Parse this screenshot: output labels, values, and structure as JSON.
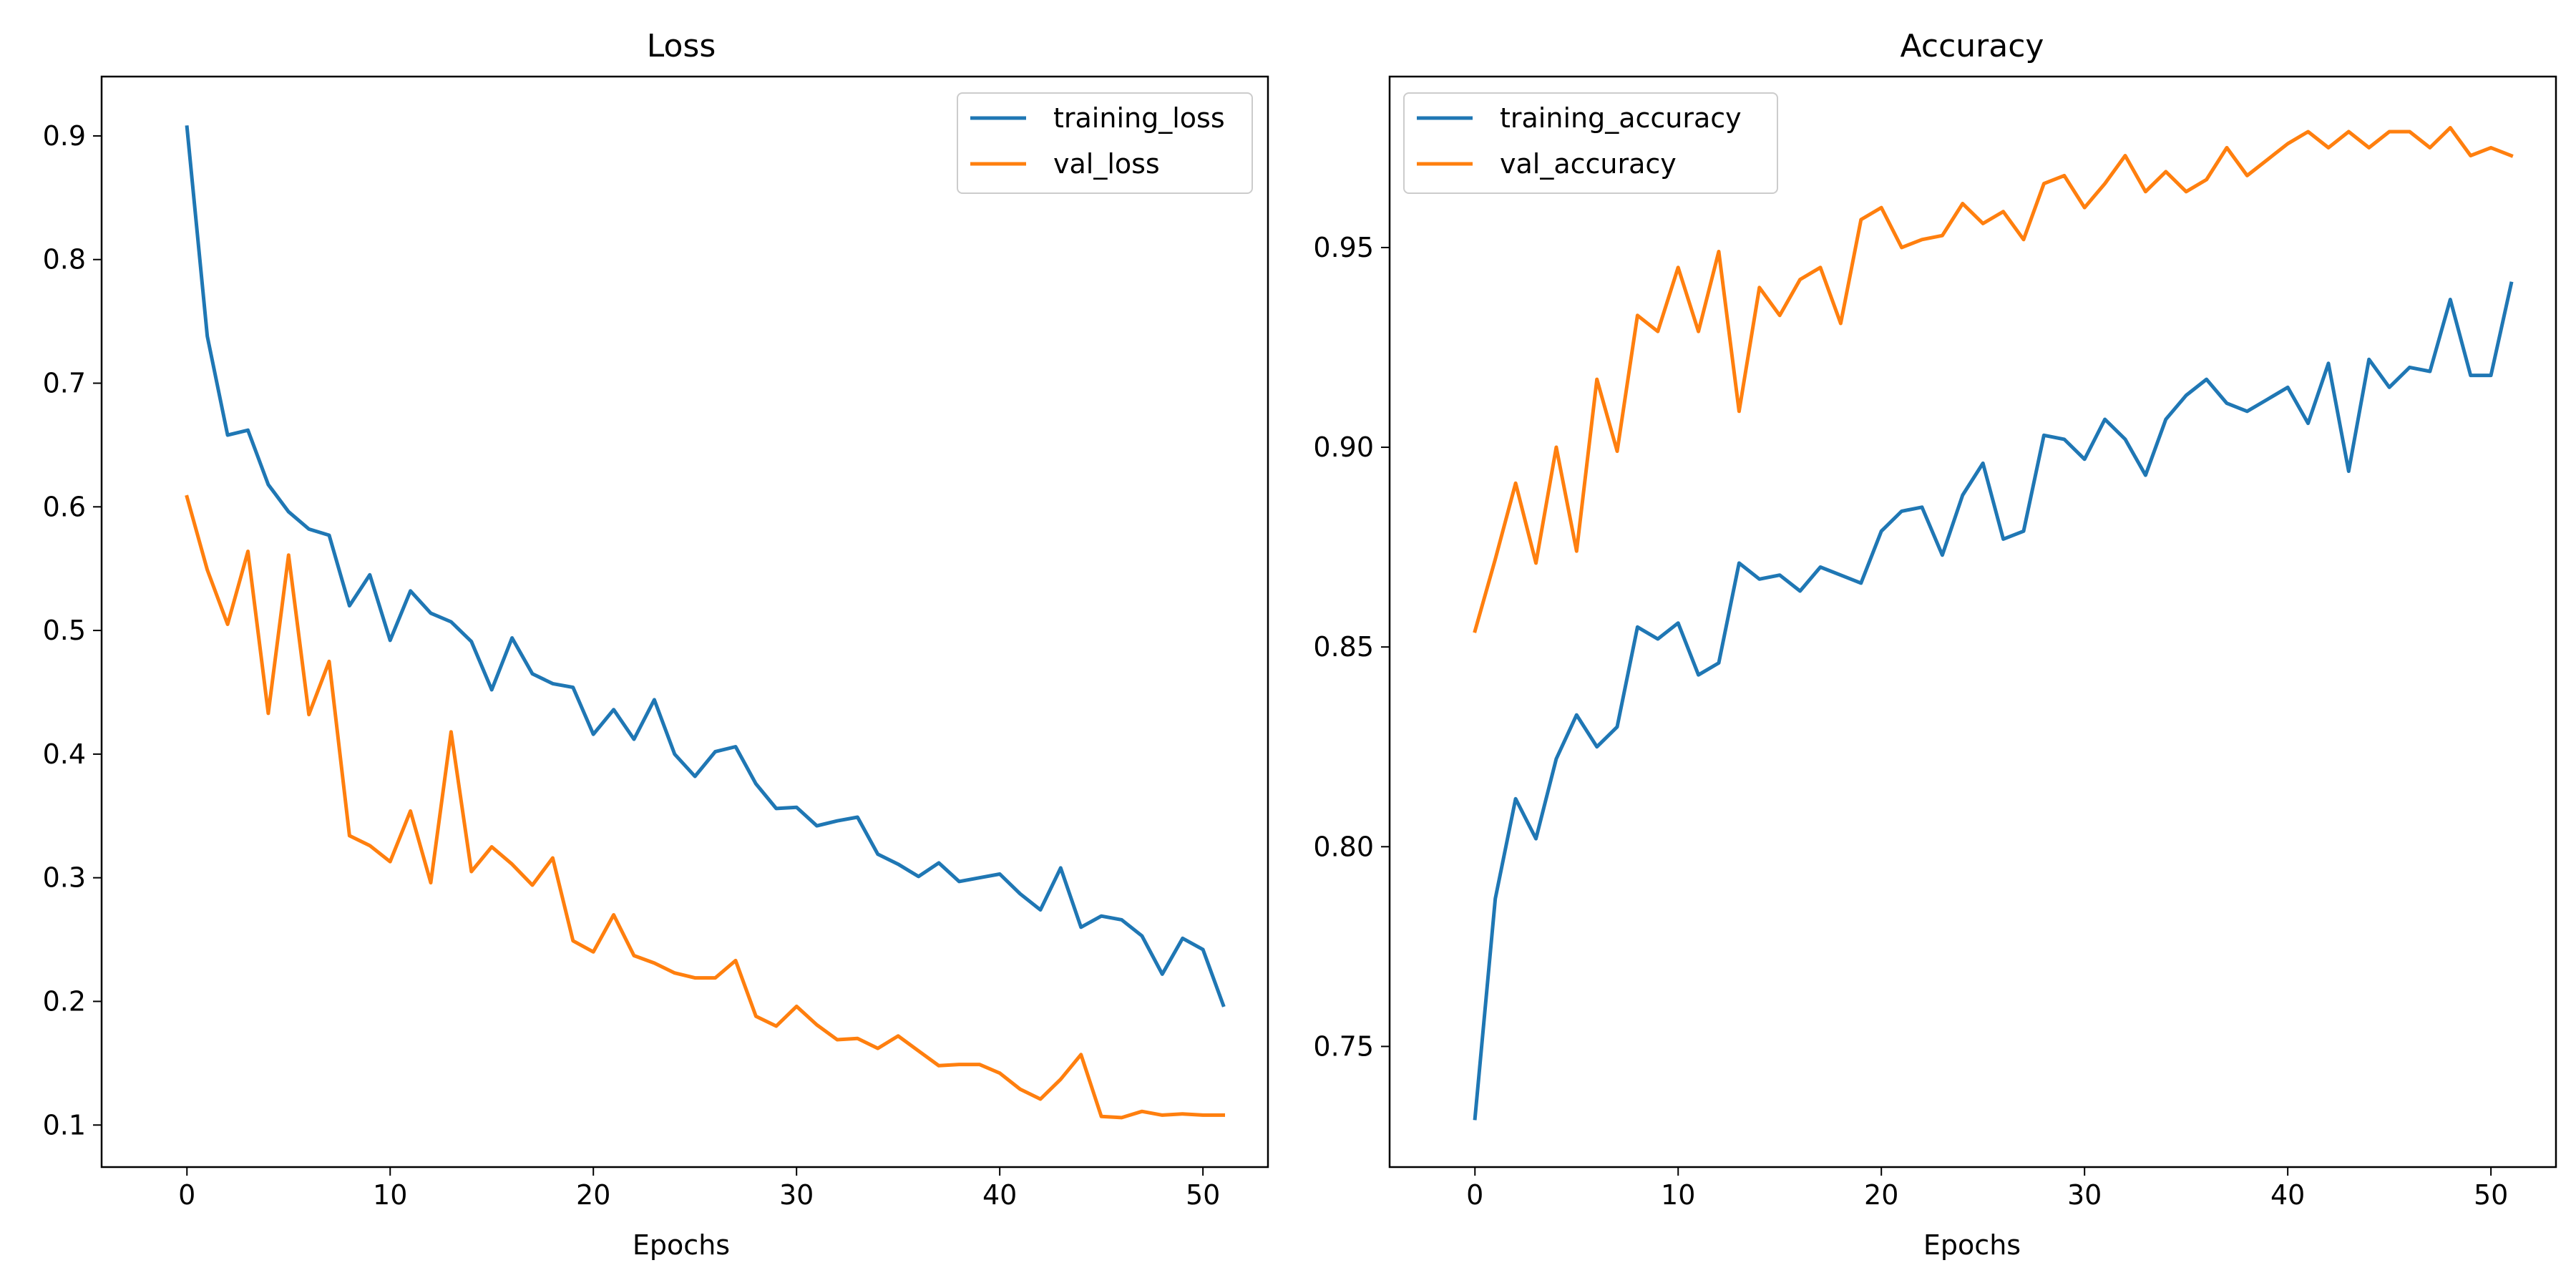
{
  "chart_data": [
    {
      "type": "line",
      "title": "Loss",
      "xlabel": "Epochs",
      "ylabel": "",
      "xlim": [
        -4.2,
        53.2
      ],
      "ylim": [
        0.066,
        0.948
      ],
      "xticks": [
        0,
        10,
        20,
        30,
        40,
        50
      ],
      "yticks": [
        0.1,
        0.2,
        0.3,
        0.4,
        0.5,
        0.6,
        0.7,
        0.8,
        0.9
      ],
      "ytick_decimals": 1,
      "legend_position": "top-right",
      "grid": false,
      "x": [
        0,
        1,
        2,
        3,
        4,
        5,
        6,
        7,
        8,
        9,
        10,
        11,
        12,
        13,
        14,
        15,
        16,
        17,
        18,
        19,
        20,
        21,
        22,
        23,
        24,
        25,
        26,
        27,
        28,
        29,
        30,
        31,
        32,
        33,
        34,
        35,
        36,
        37,
        38,
        39,
        40,
        41,
        42,
        43,
        44,
        45,
        46,
        47,
        48,
        49,
        50,
        51
      ],
      "series": [
        {
          "name": "training_loss",
          "color": "#1f77b4",
          "values": [
            0.907,
            0.738,
            0.658,
            0.662,
            0.618,
            0.596,
            0.582,
            0.577,
            0.52,
            0.545,
            0.492,
            0.532,
            0.514,
            0.507,
            0.491,
            0.452,
            0.494,
            0.465,
            0.457,
            0.454,
            0.416,
            0.436,
            0.412,
            0.444,
            0.4,
            0.382,
            0.402,
            0.406,
            0.376,
            0.356,
            0.357,
            0.342,
            0.346,
            0.349,
            0.319,
            0.311,
            0.301,
            0.312,
            0.297,
            0.3,
            0.303,
            0.287,
            0.274,
            0.308,
            0.26,
            0.269,
            0.266,
            0.253,
            0.222,
            0.251,
            0.242,
            0.197
          ]
        },
        {
          "name": "val_loss",
          "color": "#ff7f0e",
          "values": [
            0.608,
            0.549,
            0.505,
            0.564,
            0.433,
            0.561,
            0.432,
            0.475,
            0.334,
            0.326,
            0.313,
            0.354,
            0.296,
            0.418,
            0.305,
            0.325,
            0.311,
            0.294,
            0.316,
            0.249,
            0.24,
            0.27,
            0.237,
            0.231,
            0.223,
            0.219,
            0.219,
            0.233,
            0.188,
            0.18,
            0.196,
            0.181,
            0.169,
            0.17,
            0.162,
            0.172,
            0.16,
            0.148,
            0.149,
            0.149,
            0.142,
            0.129,
            0.121,
            0.137,
            0.157,
            0.107,
            0.106,
            0.111,
            0.108,
            0.109,
            0.108,
            0.108
          ]
        }
      ]
    },
    {
      "type": "line",
      "title": "Accuracy",
      "xlabel": "Epochs",
      "ylabel": "",
      "xlim": [
        -4.2,
        53.2
      ],
      "ylim": [
        0.7198,
        0.9928
      ],
      "xticks": [
        0,
        10,
        20,
        30,
        40,
        50
      ],
      "yticks": [
        0.75,
        0.8,
        0.85,
        0.9,
        0.95
      ],
      "ytick_decimals": 2,
      "legend_position": "top-left",
      "grid": false,
      "x": [
        0,
        1,
        2,
        3,
        4,
        5,
        6,
        7,
        8,
        9,
        10,
        11,
        12,
        13,
        14,
        15,
        16,
        17,
        18,
        19,
        20,
        21,
        22,
        23,
        24,
        25,
        26,
        27,
        28,
        29,
        30,
        31,
        32,
        33,
        34,
        35,
        36,
        37,
        38,
        39,
        40,
        41,
        42,
        43,
        44,
        45,
        46,
        47,
        48,
        49,
        50,
        51
      ],
      "series": [
        {
          "name": "training_accuracy",
          "color": "#1f77b4",
          "values": [
            0.732,
            0.787,
            0.812,
            0.802,
            0.822,
            0.833,
            0.825,
            0.83,
            0.855,
            0.852,
            0.856,
            0.843,
            0.846,
            0.871,
            0.867,
            0.868,
            0.864,
            0.87,
            0.868,
            0.866,
            0.879,
            0.884,
            0.885,
            0.873,
            0.888,
            0.896,
            0.877,
            0.879,
            0.903,
            0.902,
            0.897,
            0.907,
            0.902,
            0.893,
            0.907,
            0.913,
            0.917,
            0.911,
            0.909,
            0.912,
            0.915,
            0.906,
            0.921,
            0.894,
            0.922,
            0.915,
            0.92,
            0.919,
            0.937,
            0.918,
            0.918,
            0.941
          ]
        },
        {
          "name": "val_accuracy",
          "color": "#ff7f0e",
          "values": [
            0.854,
            0.872,
            0.891,
            0.871,
            0.9,
            0.874,
            0.917,
            0.899,
            0.933,
            0.929,
            0.945,
            0.929,
            0.949,
            0.909,
            0.94,
            0.933,
            0.942,
            0.945,
            0.931,
            0.957,
            0.96,
            0.95,
            0.952,
            0.953,
            0.961,
            0.956,
            0.959,
            0.952,
            0.966,
            0.968,
            0.96,
            0.966,
            0.973,
            0.964,
            0.969,
            0.964,
            0.967,
            0.975,
            0.968,
            0.972,
            0.976,
            0.979,
            0.975,
            0.979,
            0.975,
            0.979,
            0.979,
            0.975,
            0.98,
            0.973,
            0.975,
            0.973
          ]
        }
      ]
    }
  ]
}
